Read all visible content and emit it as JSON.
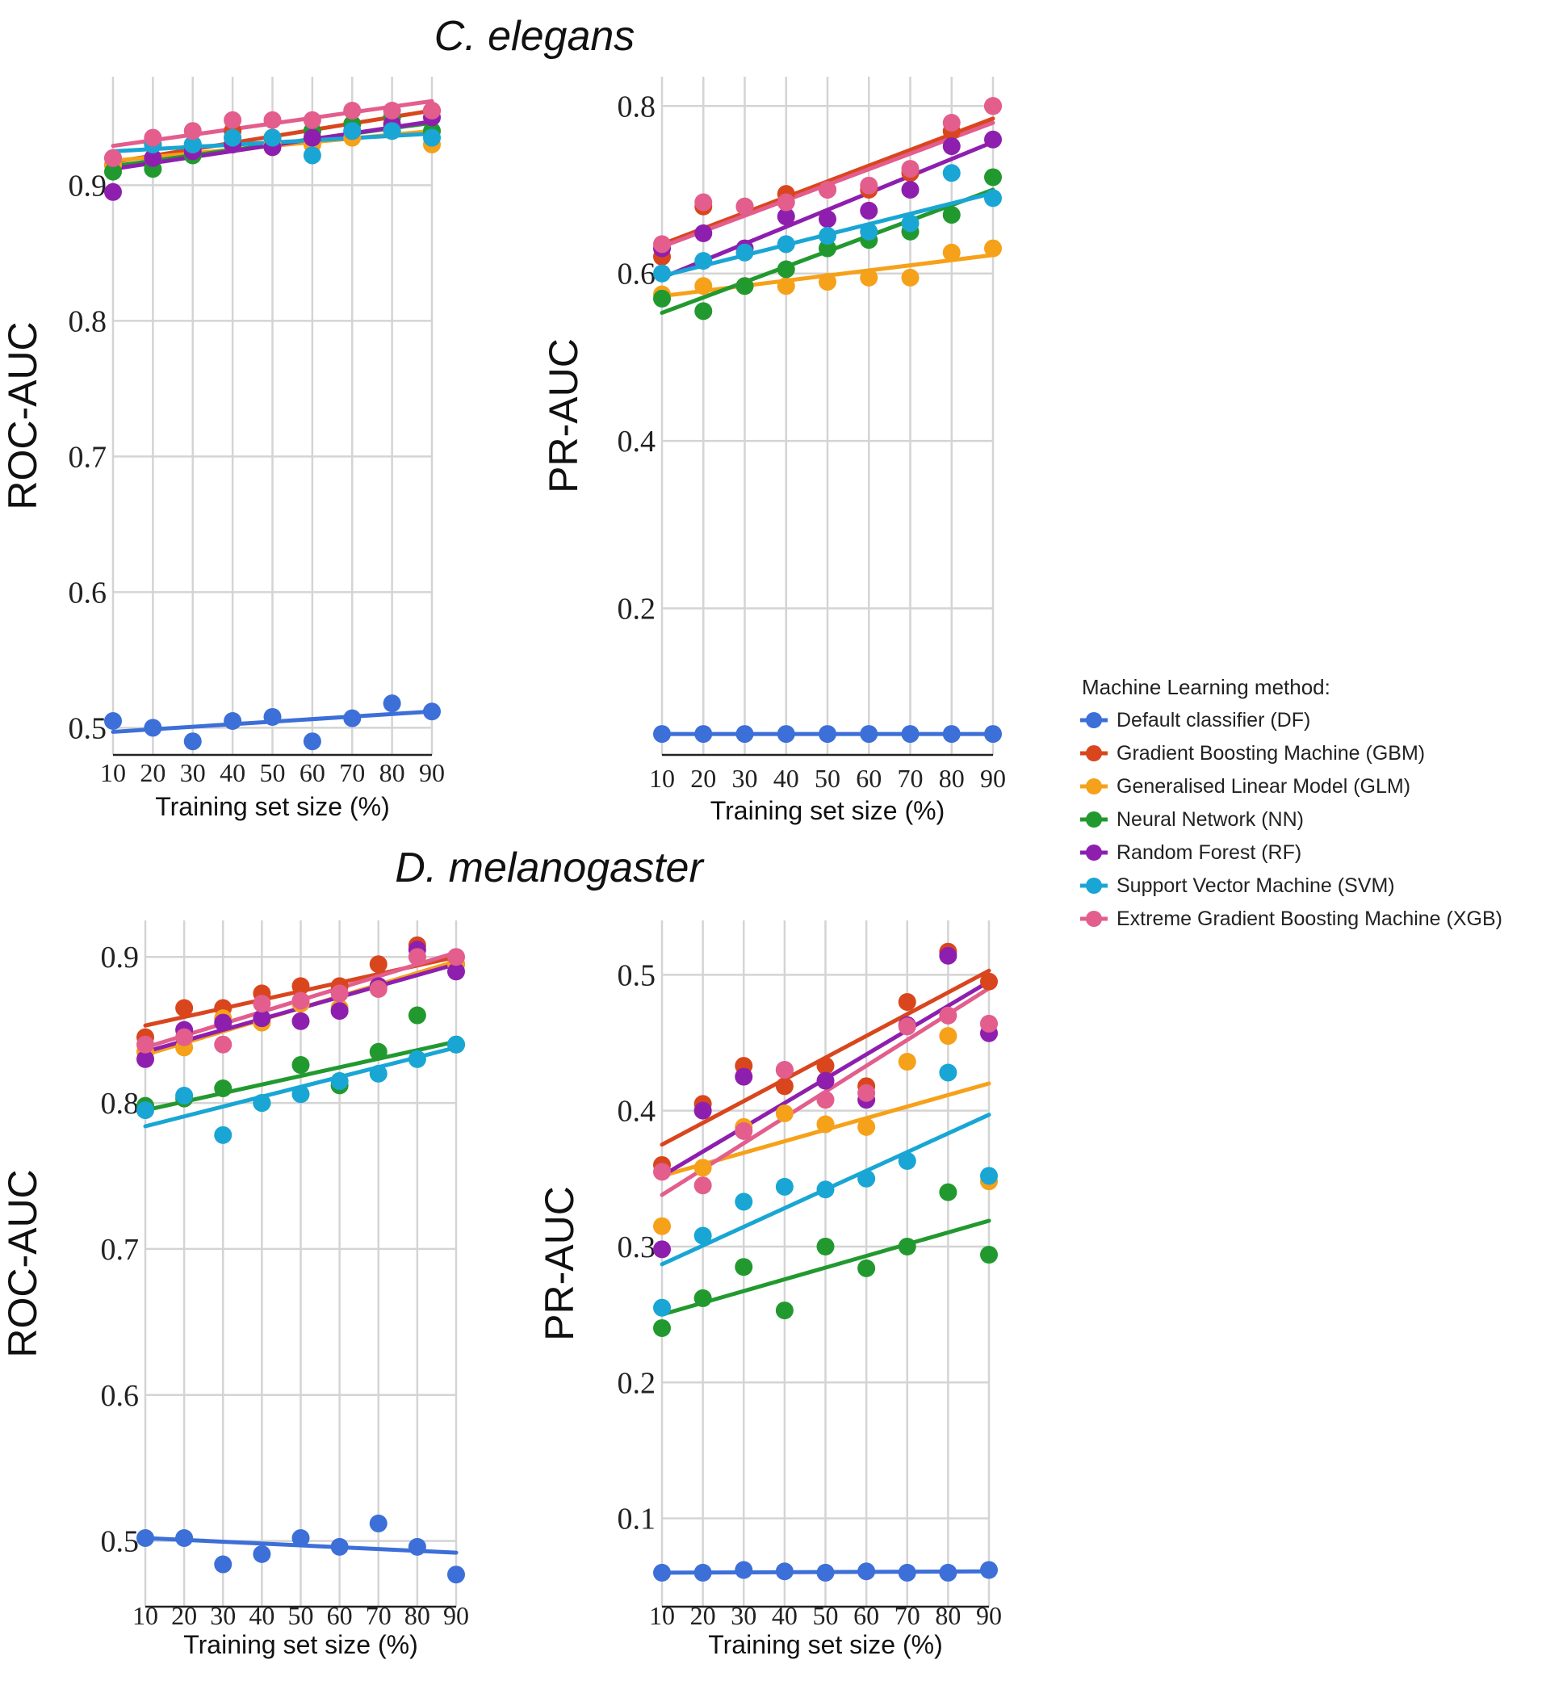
{
  "legend": {
    "title": "Machine Learning method:",
    "items": [
      {
        "key": "DF",
        "label": "Default classifier (DF)",
        "color": "#3d6fd8"
      },
      {
        "key": "GBM",
        "label": "Gradient Boosting Machine (GBM)",
        "color": "#d9461e"
      },
      {
        "key": "GLM",
        "label": "Generalised Linear Model (GLM)",
        "color": "#f6a11a"
      },
      {
        "key": "NN",
        "label": "Neural Network (NN)",
        "color": "#22992f"
      },
      {
        "key": "RF",
        "label": "Random Forest (RF)",
        "color": "#8e1fae"
      },
      {
        "key": "SVM",
        "label": "Support Vector Machine (SVM)",
        "color": "#19a6d4"
      },
      {
        "key": "XGB",
        "label": "Extreme Gradient Boosting Machine (XGB)",
        "color": "#e35d8d"
      }
    ]
  },
  "sections": [
    {
      "title": "C. elegans"
    },
    {
      "title": "D. melanogaster"
    }
  ],
  "chart_data": [
    {
      "type": "scatter",
      "id": "ce_roc",
      "section": "C. elegans",
      "ylabel": "ROC-AUC",
      "xlabel": "Training set size (%)",
      "x": [
        10,
        20,
        30,
        40,
        50,
        60,
        70,
        80,
        90
      ],
      "ylim": [
        0.48,
        0.98
      ],
      "yticks": [
        "0.5",
        "0.6",
        "0.7",
        "0.8",
        "0.9"
      ],
      "ytick_values": [
        0.5,
        0.6,
        0.7,
        0.8,
        0.9
      ],
      "series": [
        {
          "name": "DF",
          "values": [
            0.505,
            0.5,
            0.49,
            0.505,
            0.508,
            0.49,
            0.507,
            0.518,
            0.512
          ],
          "fit": [
            0.497,
            0.512
          ]
        },
        {
          "name": "GBM",
          "values": [
            0.915,
            0.93,
            0.93,
            0.94,
            0.935,
            0.94,
            0.945,
            0.95,
            0.955
          ],
          "fit": [
            0.917,
            0.955
          ]
        },
        {
          "name": "GLM",
          "values": [
            0.915,
            0.92,
            0.925,
            0.93,
            0.93,
            0.93,
            0.935,
            0.94,
            0.93
          ],
          "fit": [
            0.918,
            0.94
          ]
        },
        {
          "name": "NN",
          "values": [
            0.91,
            0.912,
            0.922,
            0.935,
            0.935,
            0.94,
            0.945,
            0.95,
            0.94
          ],
          "fit": [
            0.914,
            0.946
          ]
        },
        {
          "name": "RF",
          "values": [
            0.895,
            0.92,
            0.925,
            0.93,
            0.928,
            0.935,
            0.94,
            0.945,
            0.95
          ],
          "fit": [
            0.912,
            0.947
          ]
        },
        {
          "name": "SVM",
          "values": [
            0.92,
            0.93,
            0.93,
            0.935,
            0.935,
            0.922,
            0.94,
            0.94,
            0.935
          ],
          "fit": [
            0.925,
            0.938
          ]
        },
        {
          "name": "XGB",
          "values": [
            0.92,
            0.935,
            0.94,
            0.948,
            0.948,
            0.948,
            0.955,
            0.955,
            0.955
          ],
          "fit": [
            0.929,
            0.962
          ]
        }
      ]
    },
    {
      "type": "scatter",
      "id": "ce_pr",
      "section": "C. elegans",
      "ylabel": "PR-AUC",
      "xlabel": "Training set size (%)",
      "x": [
        10,
        20,
        30,
        40,
        50,
        60,
        70,
        80,
        90
      ],
      "ylim": [
        0.025,
        0.835
      ],
      "yticks": [
        "0.2",
        "0.4",
        "0.6",
        "0.8"
      ],
      "ytick_values": [
        0.2,
        0.4,
        0.6,
        0.8
      ],
      "series": [
        {
          "name": "DF",
          "values": [
            0.05,
            0.05,
            0.05,
            0.05,
            0.05,
            0.05,
            0.05,
            0.05,
            0.05
          ],
          "fit": [
            0.05,
            0.05
          ]
        },
        {
          "name": "GBM",
          "values": [
            0.62,
            0.68,
            0.68,
            0.695,
            0.7,
            0.7,
            0.72,
            0.77,
            0.8
          ],
          "fit": [
            0.635,
            0.785
          ]
        },
        {
          "name": "GLM",
          "values": [
            0.575,
            0.585,
            0.585,
            0.585,
            0.59,
            0.595,
            0.595,
            0.625,
            0.63
          ],
          "fit": [
            0.573,
            0.622
          ]
        },
        {
          "name": "NN",
          "values": [
            0.57,
            0.555,
            0.585,
            0.605,
            0.63,
            0.64,
            0.65,
            0.67,
            0.715
          ],
          "fit": [
            0.553,
            0.7
          ]
        },
        {
          "name": "RF",
          "values": [
            0.63,
            0.648,
            0.63,
            0.668,
            0.665,
            0.675,
            0.7,
            0.752,
            0.76
          ],
          "fit": [
            0.595,
            0.757
          ]
        },
        {
          "name": "SVM",
          "values": [
            0.6,
            0.615,
            0.625,
            0.635,
            0.645,
            0.65,
            0.66,
            0.72,
            0.69
          ],
          "fit": [
            0.597,
            0.696
          ]
        },
        {
          "name": "XGB",
          "values": [
            0.635,
            0.685,
            0.68,
            0.685,
            0.7,
            0.705,
            0.725,
            0.78,
            0.8
          ],
          "fit": [
            0.632,
            0.78
          ]
        }
      ]
    },
    {
      "type": "scatter",
      "id": "dm_roc",
      "section": "D. melanogaster",
      "ylabel": "ROC-AUC",
      "xlabel": "Training set size (%)",
      "x": [
        10,
        20,
        30,
        40,
        50,
        60,
        70,
        80,
        90
      ],
      "ylim": [
        0.455,
        0.925
      ],
      "yticks": [
        "0.5",
        "0.6",
        "0.7",
        "0.8",
        "0.9"
      ],
      "ytick_values": [
        0.5,
        0.6,
        0.7,
        0.8,
        0.9
      ],
      "series": [
        {
          "name": "DF",
          "values": [
            0.502,
            0.502,
            0.484,
            0.491,
            0.502,
            0.496,
            0.512,
            0.496,
            0.477
          ],
          "fit": [
            0.502,
            0.492
          ]
        },
        {
          "name": "GBM",
          "values": [
            0.845,
            0.865,
            0.865,
            0.875,
            0.88,
            0.88,
            0.895,
            0.908,
            0.895
          ],
          "fit": [
            0.853,
            0.9
          ]
        },
        {
          "name": "GLM",
          "values": [
            0.835,
            0.838,
            0.858,
            0.855,
            0.868,
            0.865,
            0.88,
            0.9,
            0.895
          ],
          "fit": [
            0.833,
            0.897
          ]
        },
        {
          "name": "NN",
          "values": [
            0.798,
            0.803,
            0.81,
            0.8,
            0.826,
            0.812,
            0.835,
            0.86,
            0.84
          ],
          "fit": [
            0.795,
            0.842
          ]
        },
        {
          "name": "RF",
          "values": [
            0.83,
            0.85,
            0.855,
            0.858,
            0.856,
            0.863,
            0.88,
            0.905,
            0.89
          ],
          "fit": [
            0.835,
            0.895
          ]
        },
        {
          "name": "SVM",
          "values": [
            0.795,
            0.805,
            0.778,
            0.8,
            0.806,
            0.815,
            0.82,
            0.83,
            0.84
          ],
          "fit": [
            0.784,
            0.838
          ]
        },
        {
          "name": "XGB",
          "values": [
            0.84,
            0.845,
            0.84,
            0.868,
            0.87,
            0.875,
            0.878,
            0.9,
            0.9
          ],
          "fit": [
            0.838,
            0.903
          ]
        }
      ]
    },
    {
      "type": "scatter",
      "id": "dm_pr",
      "section": "D. melanogaster",
      "ylabel": "PR-AUC",
      "xlabel": "Training set size (%)",
      "x": [
        10,
        20,
        30,
        40,
        50,
        60,
        70,
        80,
        90
      ],
      "ylim": [
        0.035,
        0.54
      ],
      "yticks": [
        "0.1",
        "0.2",
        "0.3",
        "0.4",
        "0.5"
      ],
      "ytick_values": [
        0.1,
        0.2,
        0.3,
        0.4,
        0.5
      ],
      "series": [
        {
          "name": "DF",
          "values": [
            0.06,
            0.06,
            0.062,
            0.061,
            0.06,
            0.061,
            0.06,
            0.06,
            0.062
          ],
          "fit": [
            0.06,
            0.061
          ]
        },
        {
          "name": "GBM",
          "values": [
            0.36,
            0.405,
            0.433,
            0.418,
            0.433,
            0.418,
            0.48,
            0.517,
            0.495
          ],
          "fit": [
            0.375,
            0.503
          ]
        },
        {
          "name": "GLM",
          "values": [
            0.315,
            0.358,
            0.388,
            0.398,
            0.39,
            0.388,
            0.436,
            0.455,
            0.348
          ],
          "fit": [
            0.352,
            0.42
          ]
        },
        {
          "name": "NN",
          "values": [
            0.24,
            0.262,
            0.285,
            0.253,
            0.3,
            0.284,
            0.3,
            0.34,
            0.294
          ],
          "fit": [
            0.25,
            0.319
          ]
        },
        {
          "name": "RF",
          "values": [
            0.298,
            0.4,
            0.425,
            0.43,
            0.422,
            0.408,
            0.463,
            0.514,
            0.457
          ],
          "fit": [
            0.352,
            0.495
          ]
        },
        {
          "name": "SVM",
          "values": [
            0.255,
            0.308,
            0.333,
            0.344,
            0.342,
            0.35,
            0.363,
            0.428,
            0.352
          ],
          "fit": [
            0.287,
            0.397
          ]
        },
        {
          "name": "XGB",
          "values": [
            0.355,
            0.345,
            0.385,
            0.43,
            0.408,
            0.413,
            0.462,
            0.47,
            0.464
          ],
          "fit": [
            0.338,
            0.49
          ]
        }
      ]
    }
  ]
}
